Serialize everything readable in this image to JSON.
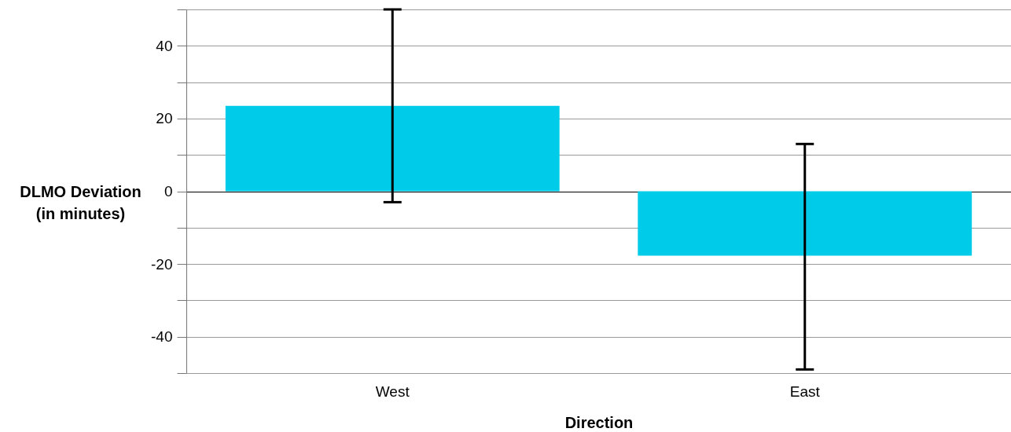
{
  "chart_data": {
    "type": "bar",
    "xlabel": "Direction",
    "ylabel": "DLMO Deviation\n(in minutes)",
    "categories": [
      "West",
      "East"
    ],
    "values": [
      23.5,
      -17.7
    ],
    "errors": [
      [
        -3,
        50
      ],
      [
        -49,
        13
      ]
    ],
    "color": "#00cbe8",
    "ylim": [
      -50,
      50
    ],
    "yticks": [
      {
        "value": -50,
        "label": null
      },
      -40,
      {
        "value": -30,
        "label": null
      },
      -20,
      {
        "value": -10,
        "label": null
      },
      0,
      {
        "value": 10,
        "label": null
      },
      20,
      {
        "value": 30,
        "label": null
      },
      40,
      {
        "value": 50,
        "label": null
      }
    ],
    "grid": "y"
  }
}
